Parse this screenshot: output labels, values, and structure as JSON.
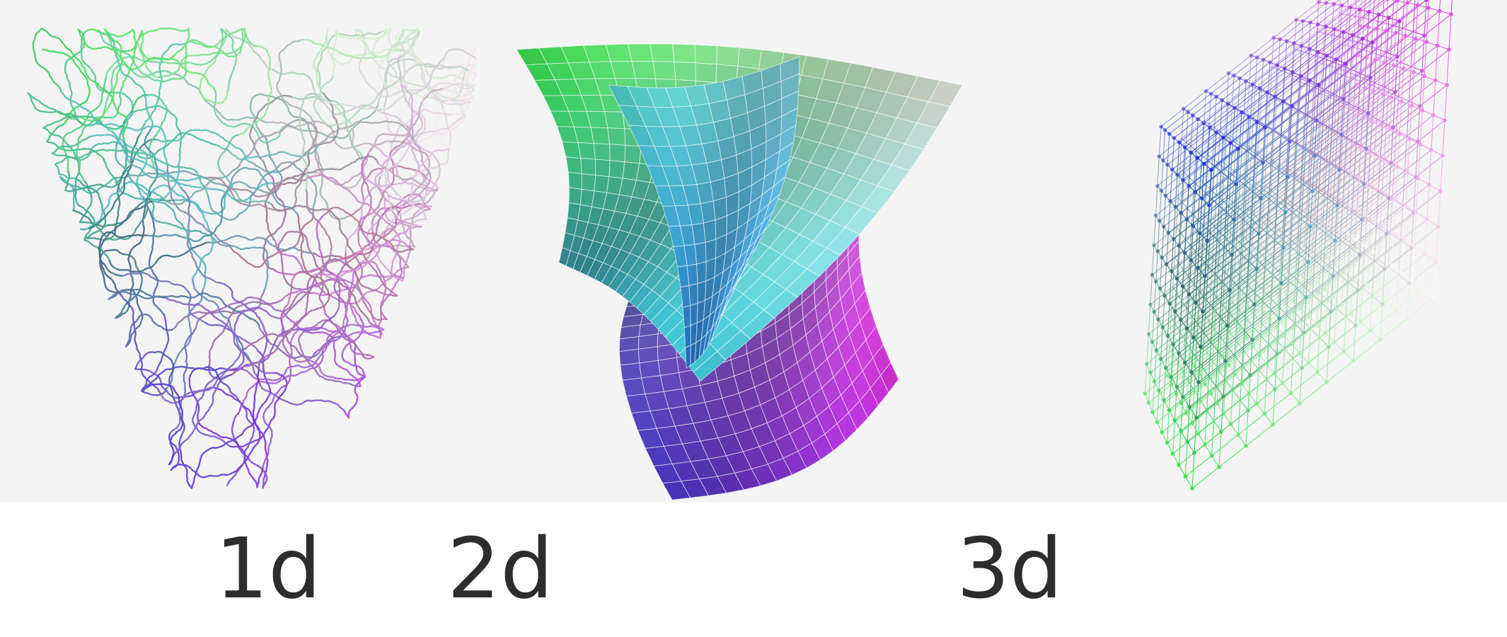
{
  "panels": [
    {
      "id": "1d",
      "label": "1d",
      "kind": "tangled-curve"
    },
    {
      "id": "2d",
      "label": "2d",
      "kind": "folded-surface"
    },
    {
      "id": "3d",
      "label": "3d",
      "kind": "lattice-cube"
    }
  ],
  "colors": {
    "background": "#f4f4f5",
    "label_text": "#2d2d2d",
    "green": "#38e04a",
    "yellow": "#f2ee3c",
    "cyan": "#3fd6e6",
    "blue": "#2030d8",
    "magenta": "#e030e0",
    "red": "#c83040",
    "dark": "#203020"
  }
}
